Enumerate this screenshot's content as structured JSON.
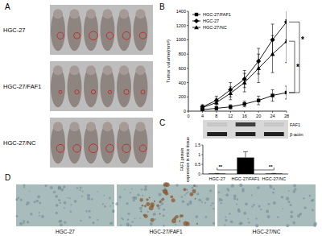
{
  "panels": {
    "A": {
      "label": "A",
      "rows": [
        "HGC-27",
        "HGC-27/FAF1",
        "HGC-27/NC"
      ]
    },
    "D": {
      "label": "D",
      "images": [
        "HGC-27",
        "HGC-27/FAF1",
        "HGC-27/NC"
      ]
    }
  },
  "chart_data": [
    {
      "label": "B",
      "type": "line",
      "x": [
        4,
        8,
        12,
        16,
        20,
        24,
        28
      ],
      "xlim": [
        0,
        28
      ],
      "xticks": [
        0,
        4,
        8,
        12,
        16,
        20,
        24,
        28
      ],
      "ylim": [
        0,
        1400
      ],
      "yticks": [
        0,
        200,
        400,
        600,
        800,
        1000,
        1200,
        1400
      ],
      "x_label": "DAYS",
      "y_label": "Tumor volume(mm³)",
      "legend": "top-left",
      "grid": false,
      "annotations": [
        "*",
        "*"
      ],
      "series": [
        {
          "name": "HGC-27/FAF1",
          "color": "#000000",
          "marker": "square",
          "values": [
            20,
            40,
            60,
            100,
            150,
            220,
            260
          ],
          "errors": [
            15,
            25,
            30,
            40,
            60,
            80,
            90
          ]
        },
        {
          "name": "HGC-27",
          "color": "#000000",
          "marker": "diamond",
          "values": [
            60,
            150,
            300,
            450,
            700,
            1000,
            1250
          ],
          "errors": [
            30,
            60,
            100,
            120,
            180,
            220,
            250
          ]
        },
        {
          "name": "HGC-27/NC",
          "color": "#000000",
          "marker": "triangle",
          "values": [
            50,
            120,
            250,
            400,
            600,
            800,
            980
          ],
          "errors": [
            30,
            60,
            90,
            130,
            200,
            260,
            300
          ]
        }
      ]
    },
    {
      "label": "C",
      "type": "bar",
      "categories": [
        "HGC-27",
        "HGC-27/FAF1",
        "HGC-27/NC"
      ],
      "values": [
        0.02,
        0.85,
        0.02
      ],
      "errors": [
        0.01,
        0.3,
        0.01
      ],
      "color": "#000000",
      "ylim": [
        0,
        1.5
      ],
      "yticks": [
        0,
        0.5,
        1,
        1.5
      ],
      "y_label": [
        "FAF1 protein",
        "expression in mice tissue"
      ],
      "annotations": [
        "**",
        "**"
      ],
      "blot_labels": [
        "FAF1",
        "β-actin"
      ]
    }
  ]
}
